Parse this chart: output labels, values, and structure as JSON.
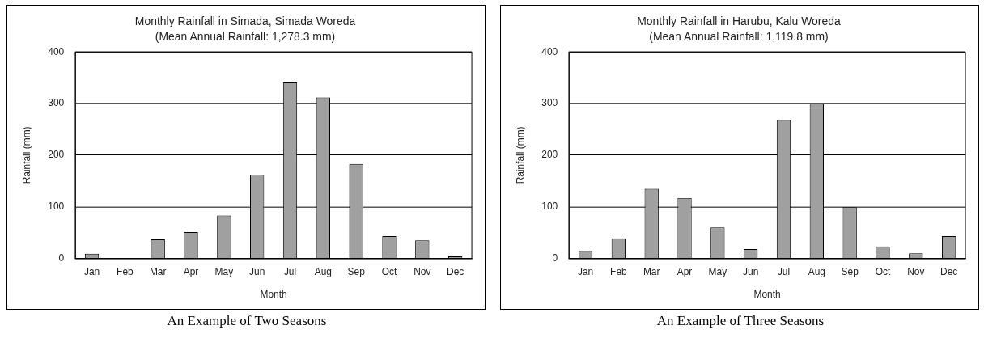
{
  "chart_data": [
    {
      "type": "bar",
      "title": "Monthly Rainfall in Simada, Simada Woreda",
      "subtitle": "(Mean Annual Rainfall: 1,278.3 mm)",
      "xlabel": "Month",
      "ylabel": "Rainfall (mm)",
      "categories": [
        "Jan",
        "Feb",
        "Mar",
        "Apr",
        "May",
        "Jun",
        "Jul",
        "Aug",
        "Sep",
        "Oct",
        "Nov",
        "Dec"
      ],
      "values": [
        9,
        0,
        37,
        51,
        83,
        162,
        341,
        312,
        183,
        43,
        35,
        4
      ],
      "color": "#a0a0a0",
      "ylim": [
        0,
        400
      ],
      "yticks": [
        0,
        100,
        200,
        300,
        400
      ],
      "grid": "y",
      "legend": false,
      "annotations": [
        "An Example of Two Seasons"
      ]
    },
    {
      "type": "bar",
      "title": "Monthly Rainfall in Harubu, Kalu Woreda",
      "subtitle": "(Mean Annual Rainfall: 1,119.8 mm)",
      "xlabel": "Month",
      "ylabel": "Rainfall (mm)",
      "categories": [
        "Jan",
        "Feb",
        "Mar",
        "Apr",
        "May",
        "Jun",
        "Jul",
        "Aug",
        "Sep",
        "Oct",
        "Nov",
        "Dec"
      ],
      "values": [
        14,
        39,
        135,
        117,
        60,
        18,
        268,
        300,
        99,
        23,
        10,
        43
      ],
      "color": "#a0a0a0",
      "ylim": [
        0,
        400
      ],
      "yticks": [
        0,
        100,
        200,
        300,
        400
      ],
      "grid": "y",
      "legend": false,
      "annotations": [
        "An Example of Three Seasons"
      ]
    }
  ]
}
